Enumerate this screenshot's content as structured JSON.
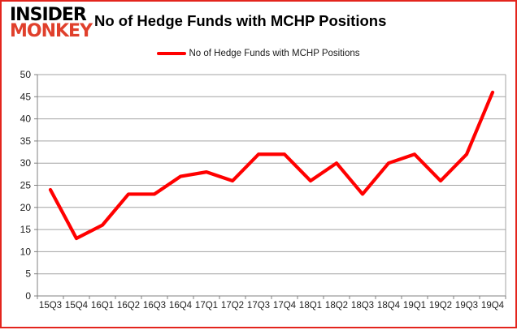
{
  "brand": {
    "line1": "INSIDER",
    "line2": "MONKEY"
  },
  "header": {
    "title": "No of Hedge Funds with MCHP Positions"
  },
  "legend": {
    "label": "No of Hedge Funds with MCHP Positions",
    "swatch_color": "#ff0000"
  },
  "chart_data": {
    "type": "line",
    "title": "No of Hedge Funds with MCHP Positions",
    "categories": [
      "15Q3",
      "15Q4",
      "16Q1",
      "16Q2",
      "16Q3",
      "16Q4",
      "17Q1",
      "17Q2",
      "17Q3",
      "17Q4",
      "18Q1",
      "18Q2",
      "18Q3",
      "18Q4",
      "19Q1",
      "19Q2",
      "19Q3",
      "19Q4"
    ],
    "values": [
      24,
      13,
      16,
      23,
      23,
      27,
      28,
      26,
      32,
      32,
      26,
      30,
      23,
      30,
      32,
      26,
      32,
      46
    ],
    "series_name": "No of Hedge Funds with MCHP Positions",
    "xlabel": "",
    "ylabel": "",
    "ylim": [
      0,
      50
    ],
    "ytick_step": 5,
    "grid": true,
    "legend_position": "top",
    "line_color": "#ff0000"
  },
  "colors": {
    "frame": "#e3251d",
    "grid": "#a3a3a3",
    "axis": "#808080",
    "tick_label": "#1f1f1f",
    "title": "#000000",
    "brand_primary": "#000000",
    "brand_secondary": "#e0402c"
  }
}
